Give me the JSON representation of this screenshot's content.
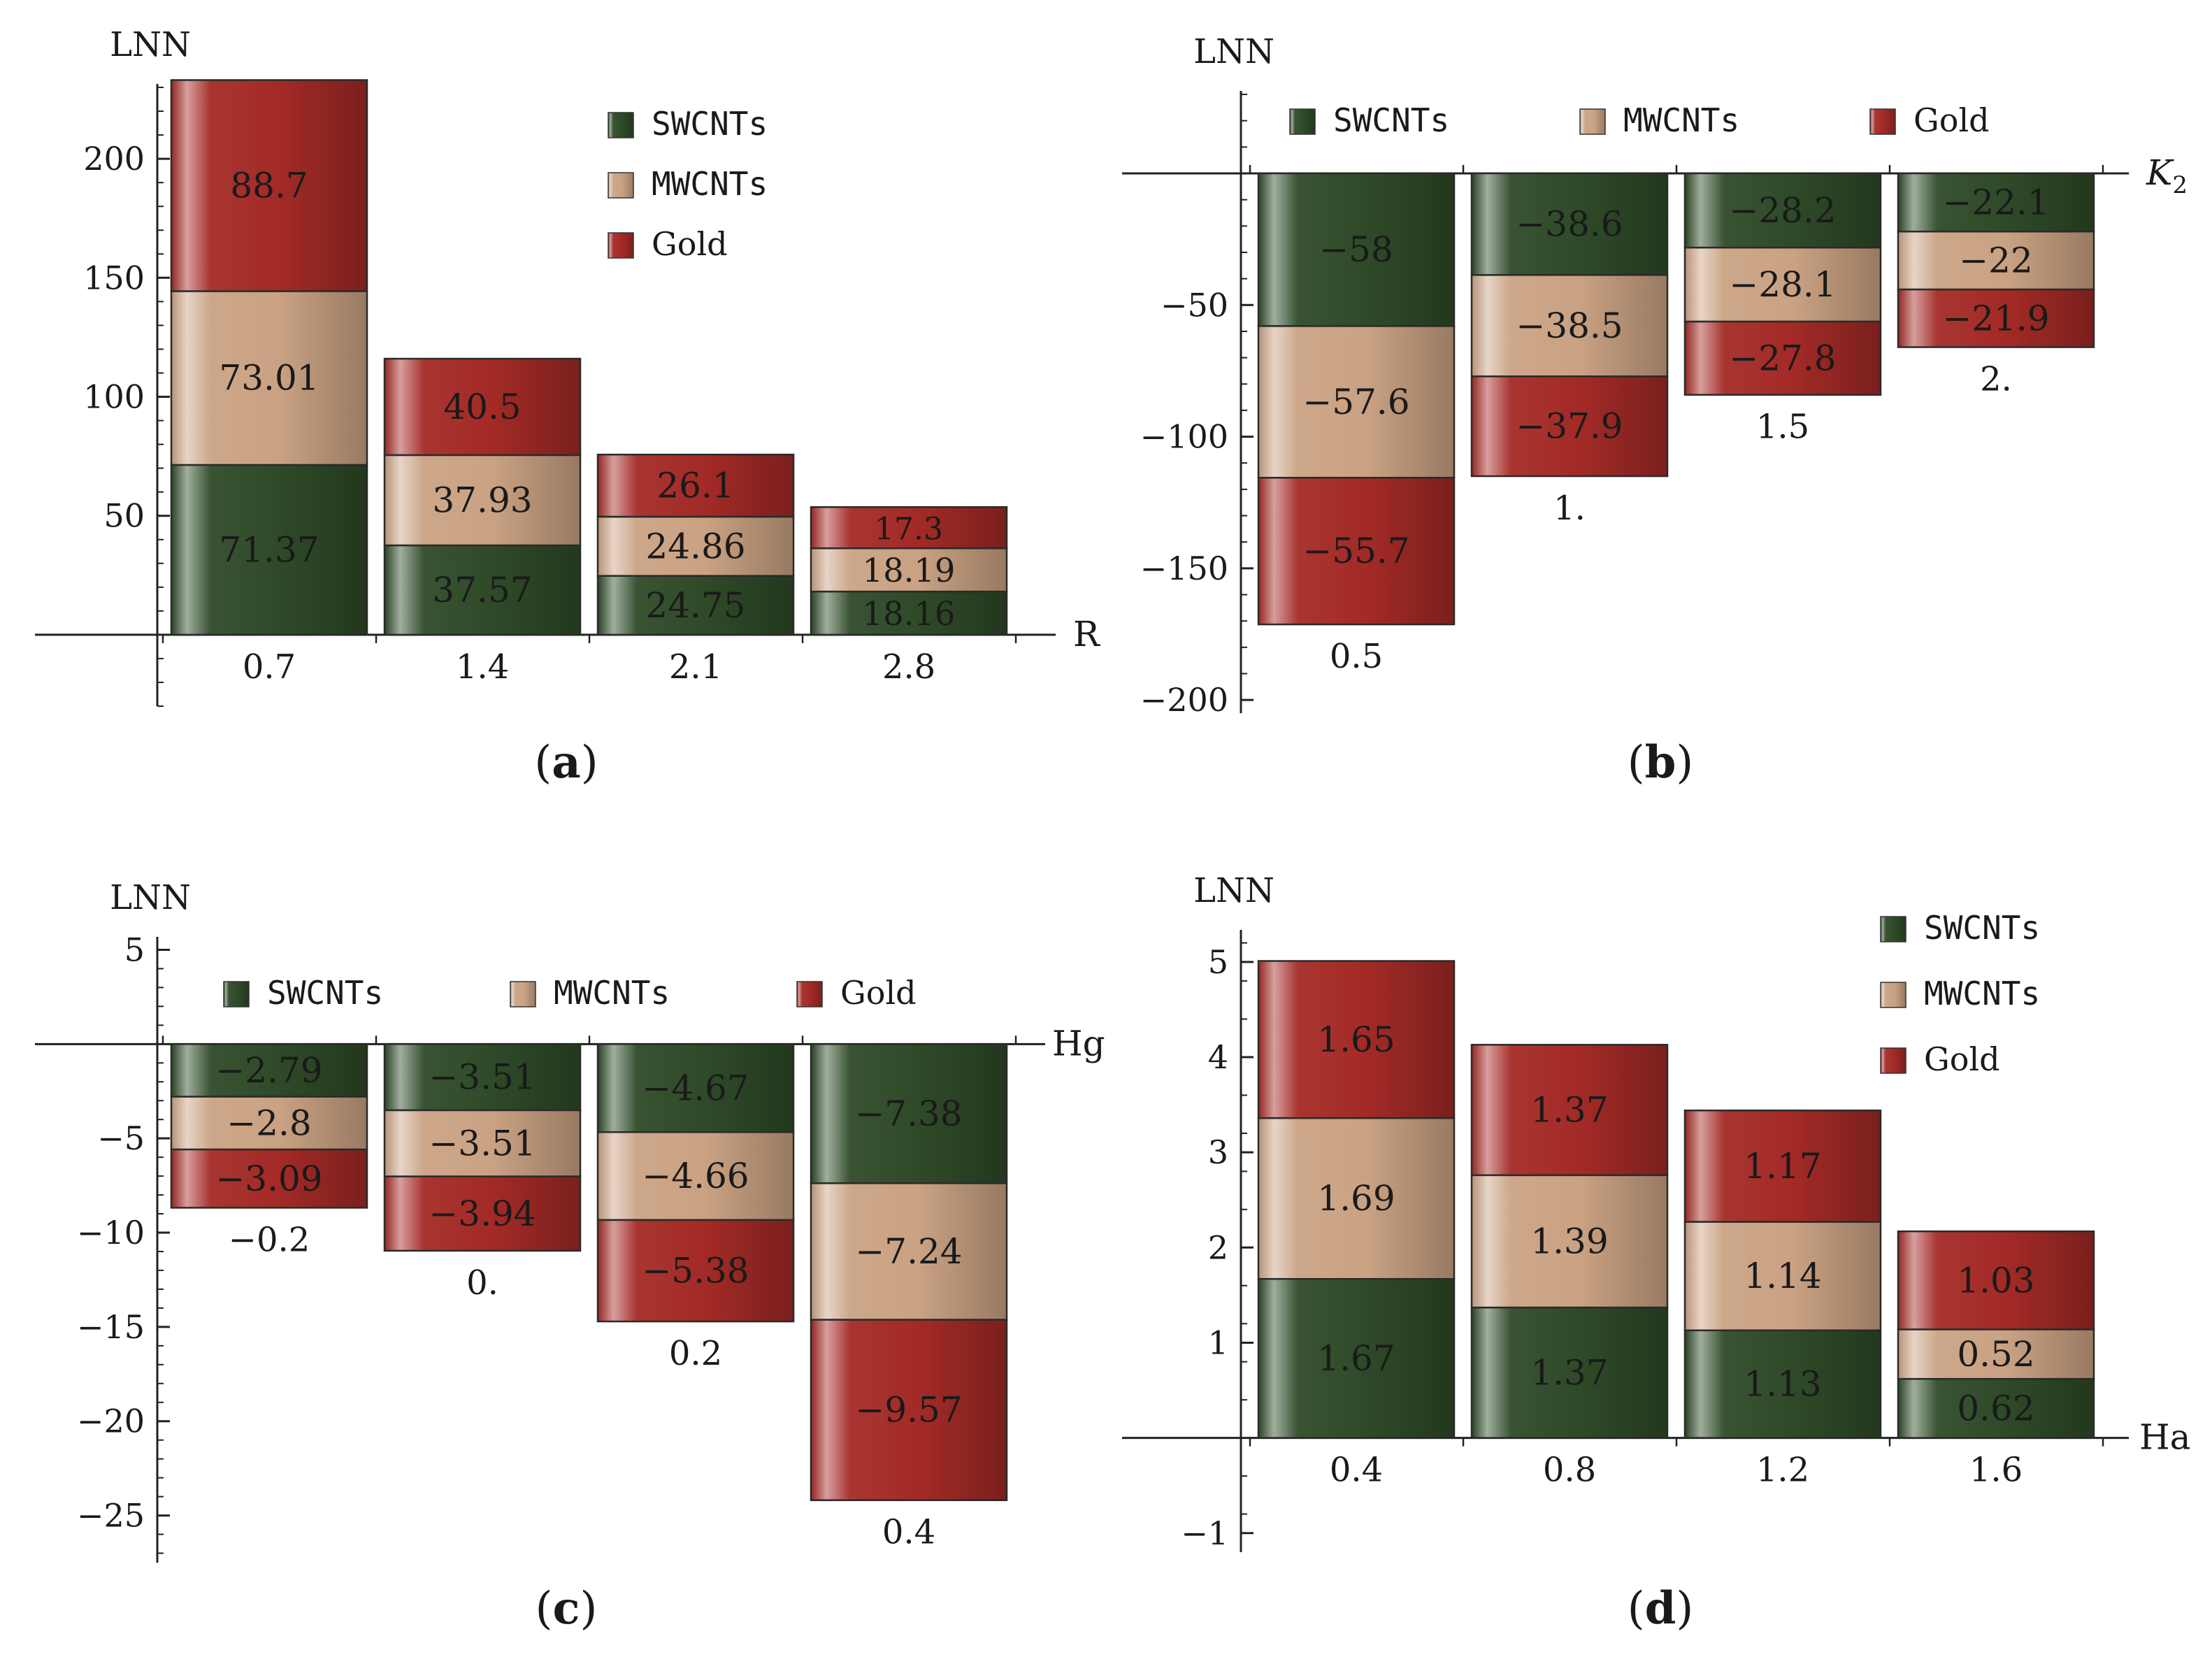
{
  "figure": {
    "captions": [
      "(a)",
      "(b)",
      "(c)",
      "(d)"
    ]
  },
  "colors": {
    "SWCNTs": "#2f4a28",
    "MWCNTs": "#caa283",
    "Gold": "#a32a26"
  },
  "chart_data": [
    {
      "type": "bar",
      "stacked": true,
      "panel": "a",
      "caption_letter": "a",
      "ylabel": "LNN",
      "xlabel": "R",
      "ylim": [
        -30,
        230
      ],
      "yticks": [
        50,
        100,
        150,
        200
      ],
      "ytick_labels": [
        "50",
        "100",
        "150",
        "200"
      ],
      "legend": {
        "layout": "vertical",
        "position": "top-right",
        "entries": [
          "SWCNTs",
          "MWCNTs",
          "Gold"
        ]
      },
      "categories": [
        "0.7",
        "1.4",
        "2.1",
        "2.8"
      ],
      "series": [
        {
          "name": "SWCNTs",
          "values": [
            71.37,
            37.57,
            24.75,
            18.16
          ],
          "labels": [
            "71.37",
            "37.57",
            "24.75",
            "18.16"
          ]
        },
        {
          "name": "MWCNTs",
          "values": [
            73.01,
            37.93,
            24.86,
            18.19
          ],
          "labels": [
            "73.01",
            "37.93",
            "24.86",
            "18.19"
          ]
        },
        {
          "name": "Gold",
          "values": [
            88.7,
            40.5,
            26.1,
            17.3
          ],
          "labels": [
            "88.7",
            "40.5",
            "26.1",
            "17.3"
          ]
        }
      ]
    },
    {
      "type": "bar",
      "stacked": true,
      "panel": "b",
      "caption_letter": "b",
      "ylabel": "LNN",
      "xlabel": "K",
      "xlabel_sub": "2",
      "ylim": [
        -205,
        30
      ],
      "yticks": [
        -200,
        -150,
        -100,
        -50
      ],
      "ytick_labels": [
        "−200",
        "−150",
        "−100",
        "−50"
      ],
      "legend": {
        "layout": "horizontal",
        "position": "top",
        "entries": [
          "SWCNTs",
          "MWCNTs",
          "Gold"
        ]
      },
      "categories": [
        "0.5",
        "1.",
        "1.5",
        "2."
      ],
      "series": [
        {
          "name": "SWCNTs",
          "values": [
            -58,
            -38.6,
            -28.2,
            -22.1
          ],
          "labels": [
            "−58",
            "−38.6",
            "−28.2",
            "−22.1"
          ]
        },
        {
          "name": "MWCNTs",
          "values": [
            -57.6,
            -38.5,
            -28.1,
            -22
          ],
          "labels": [
            "−57.6",
            "−38.5",
            "−28.1",
            "−22"
          ]
        },
        {
          "name": "Gold",
          "values": [
            -55.7,
            -37.9,
            -27.8,
            -21.9
          ],
          "labels": [
            "−55.7",
            "−37.9",
            "−27.8",
            "−21.9"
          ]
        }
      ]
    },
    {
      "type": "bar",
      "stacked": true,
      "panel": "c",
      "caption_letter": "c",
      "ylabel": "LNN",
      "xlabel": "Hg",
      "ylim": [
        -27.5,
        5.5
      ],
      "yticks": [
        -25,
        -20,
        -15,
        -10,
        -5,
        5
      ],
      "ytick_labels": [
        "−25",
        "−20",
        "−15",
        "−10",
        "−5",
        "5"
      ],
      "legend": {
        "layout": "horizontal",
        "position": "top",
        "entries": [
          "SWCNTs",
          "MWCNTs",
          "Gold"
        ]
      },
      "categories": [
        "−0.2",
        "0.",
        "0.2",
        "0.4"
      ],
      "series": [
        {
          "name": "SWCNTs",
          "values": [
            -2.79,
            -3.51,
            -4.67,
            -7.38
          ],
          "labels": [
            "−2.79",
            "−3.51",
            "−4.67",
            "−7.38"
          ]
        },
        {
          "name": "MWCNTs",
          "values": [
            -2.8,
            -3.51,
            -4.66,
            -7.24
          ],
          "labels": [
            "−2.8",
            "−3.51",
            "−4.66",
            "−7.24"
          ]
        },
        {
          "name": "Gold",
          "values": [
            -3.09,
            -3.94,
            -5.38,
            -9.57
          ],
          "labels": [
            "−3.09",
            "−3.94",
            "−5.38",
            "−9.57"
          ]
        }
      ]
    },
    {
      "type": "bar",
      "stacked": true,
      "panel": "d",
      "caption_letter": "d",
      "ylabel": "LNN",
      "xlabel": "Ha",
      "ylim": [
        -1.2,
        5.3
      ],
      "yticks": [
        -1,
        1,
        2,
        3,
        4,
        5
      ],
      "ytick_labels": [
        "−1",
        "1",
        "2",
        "3",
        "4",
        "5"
      ],
      "legend": {
        "layout": "vertical",
        "position": "top-right",
        "entries": [
          "SWCNTs",
          "MWCNTs",
          "Gold"
        ]
      },
      "categories": [
        "0.4",
        "0.8",
        "1.2",
        "1.6"
      ],
      "series": [
        {
          "name": "SWCNTs",
          "values": [
            1.67,
            1.37,
            1.13,
            0.62
          ],
          "labels": [
            "1.67",
            "1.37",
            "1.13",
            "0.62"
          ]
        },
        {
          "name": "MWCNTs",
          "values": [
            1.69,
            1.39,
            1.14,
            0.52
          ],
          "labels": [
            "1.69",
            "1.39",
            "1.14",
            "0.52"
          ]
        },
        {
          "name": "Gold",
          "values": [
            1.65,
            1.37,
            1.17,
            1.03
          ],
          "labels": [
            "1.65",
            "1.37",
            "1.17",
            "1.03"
          ]
        }
      ]
    }
  ]
}
